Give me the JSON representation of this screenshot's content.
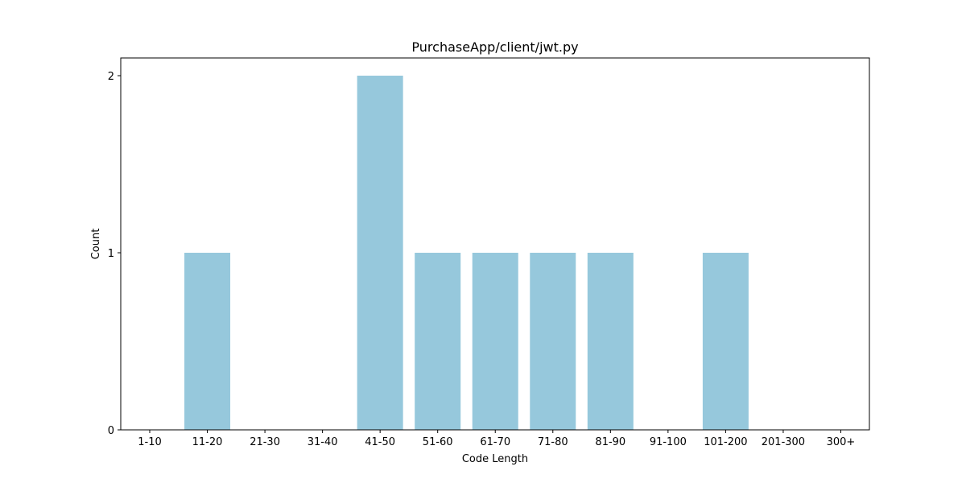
{
  "chart_data": {
    "type": "bar",
    "title": "PurchaseApp/client/jwt.py",
    "xlabel": "Code Length",
    "ylabel": "Count",
    "categories": [
      "1-10",
      "11-20",
      "21-30",
      "31-40",
      "41-50",
      "51-60",
      "61-70",
      "71-80",
      "81-90",
      "91-100",
      "101-200",
      "201-300",
      "300+"
    ],
    "values": [
      0,
      1,
      0,
      0,
      2,
      1,
      1,
      1,
      1,
      0,
      1,
      0,
      0
    ],
    "yticks": [
      "0",
      "1",
      "2"
    ],
    "ylim": [
      0,
      2.1
    ],
    "grid": false,
    "legend": "none",
    "bar_color": "#96c8dc"
  }
}
